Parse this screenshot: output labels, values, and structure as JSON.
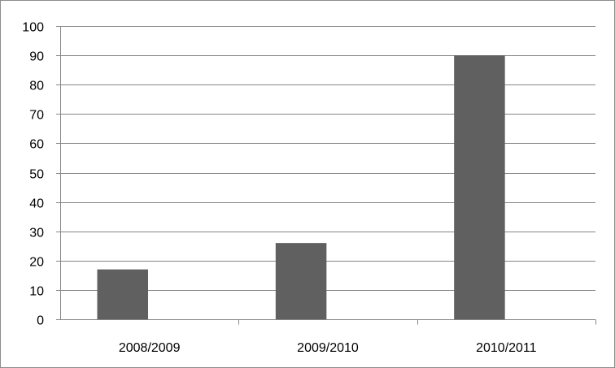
{
  "chart_data": {
    "type": "bar",
    "title": "",
    "xlabel": "",
    "ylabel": "",
    "categories": [
      "2008/2009",
      "2009/2010",
      "2010/2011"
    ],
    "values": [
      17,
      26,
      90
    ],
    "ylim": [
      0,
      100
    ],
    "yticks": [
      0,
      10,
      20,
      30,
      40,
      50,
      60,
      70,
      80,
      90,
      100
    ],
    "grid": true,
    "legend": "none",
    "bar_color": "#606060",
    "gridline_color": "#868686"
  }
}
